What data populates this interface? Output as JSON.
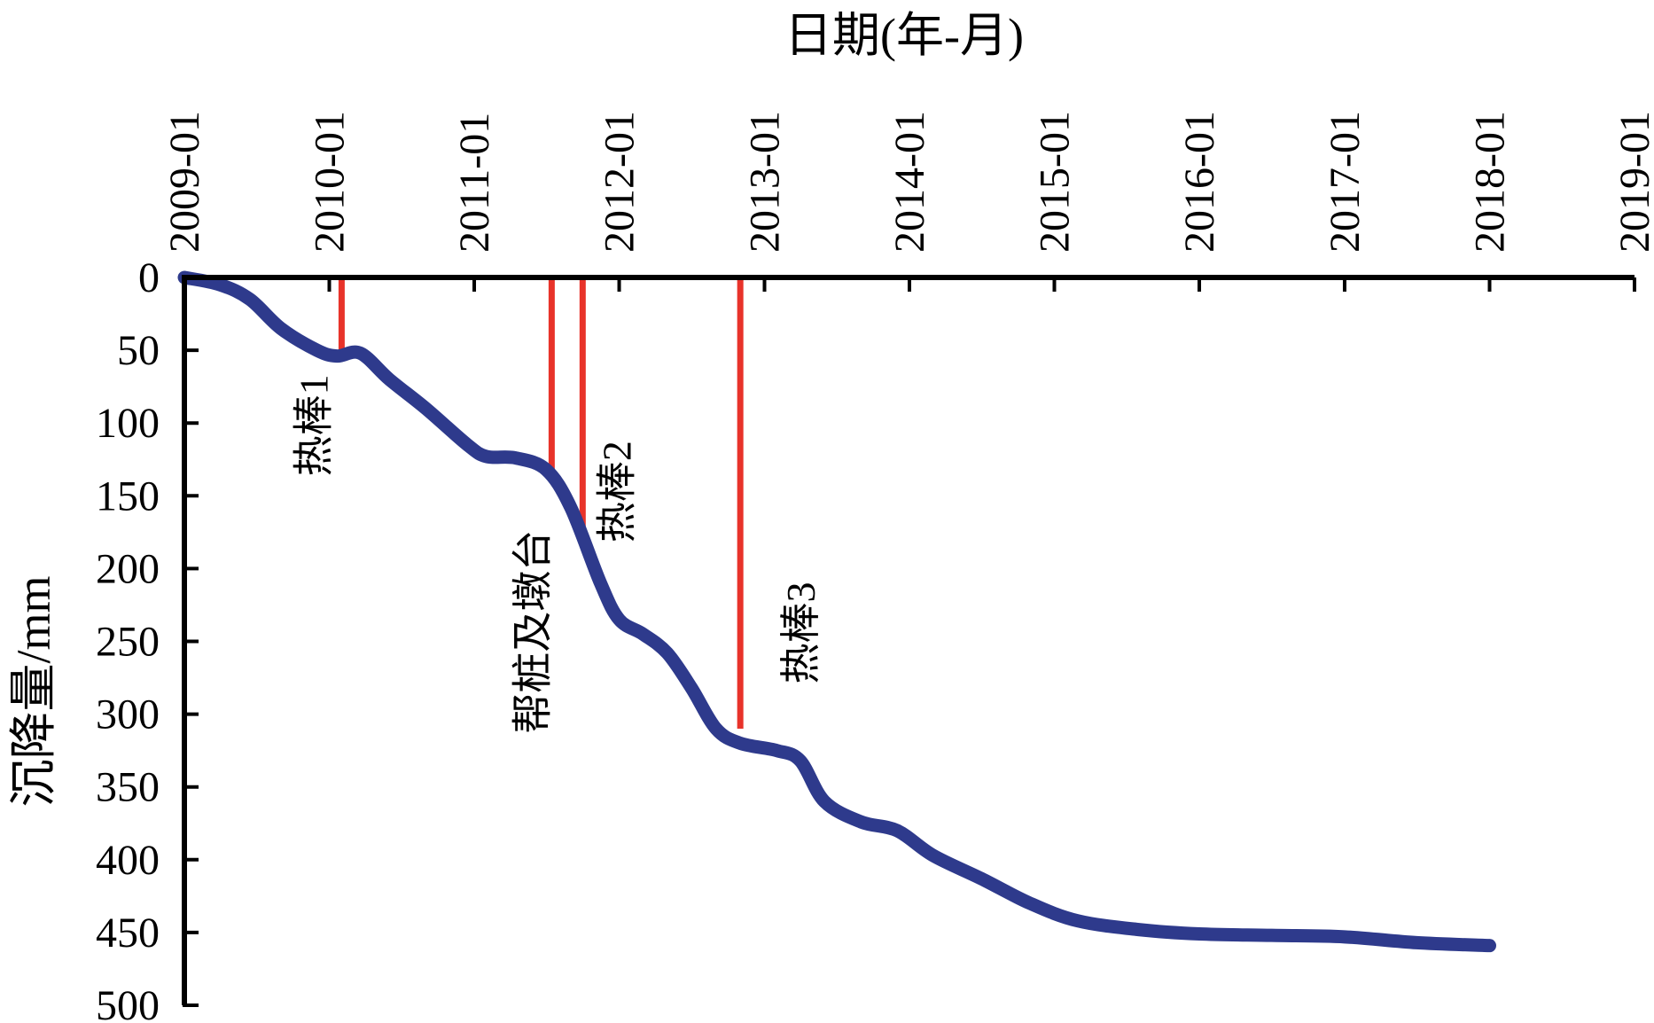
{
  "colors": {
    "series": "#2e3a8c",
    "marker": "#e8332a",
    "axis": "#000000",
    "background": "#ffffff"
  },
  "chart_data": {
    "type": "line",
    "title": "",
    "xlabel": "日期(年-月)",
    "ylabel": "沉降量/mm",
    "x_axis_position": "top",
    "y_axis_inverted": true,
    "grid": false,
    "legend": "none",
    "xlim": [
      "2009-01",
      "2019-01"
    ],
    "ylim": [
      0,
      500
    ],
    "x_ticks": [
      "2009-01",
      "2010-01",
      "2011-01",
      "2012-01",
      "2013-01",
      "2014-01",
      "2015-01",
      "2016-01",
      "2017-01",
      "2018-01",
      "2019-01"
    ],
    "y_ticks": [
      0,
      50,
      100,
      150,
      200,
      250,
      300,
      350,
      400,
      450,
      500
    ],
    "series": [
      {
        "points": [
          {
            "x": "2009-01-01",
            "y": 0
          },
          {
            "x": "2009-04-01",
            "y": 5
          },
          {
            "x": "2009-06-15",
            "y": 15
          },
          {
            "x": "2009-09-01",
            "y": 35
          },
          {
            "x": "2009-12-01",
            "y": 50
          },
          {
            "x": "2010-01-20",
            "y": 54
          },
          {
            "x": "2010-03-20",
            "y": 52
          },
          {
            "x": "2010-06-01",
            "y": 70
          },
          {
            "x": "2010-09-01",
            "y": 90
          },
          {
            "x": "2010-12-15",
            "y": 115
          },
          {
            "x": "2011-02-01",
            "y": 123
          },
          {
            "x": "2011-04-15",
            "y": 124
          },
          {
            "x": "2011-07-01",
            "y": 132
          },
          {
            "x": "2011-09-01",
            "y": 158
          },
          {
            "x": "2011-11-15",
            "y": 210
          },
          {
            "x": "2012-01-01",
            "y": 235
          },
          {
            "x": "2012-03-01",
            "y": 245
          },
          {
            "x": "2012-05-01",
            "y": 258
          },
          {
            "x": "2012-07-01",
            "y": 282
          },
          {
            "x": "2012-09-01",
            "y": 310
          },
          {
            "x": "2012-11-01",
            "y": 320
          },
          {
            "x": "2013-02-01",
            "y": 325
          },
          {
            "x": "2013-04-01",
            "y": 332
          },
          {
            "x": "2013-06-01",
            "y": 360
          },
          {
            "x": "2013-09-01",
            "y": 374
          },
          {
            "x": "2013-12-01",
            "y": 380
          },
          {
            "x": "2014-03-01",
            "y": 397
          },
          {
            "x": "2014-07-01",
            "y": 413
          },
          {
            "x": "2014-11-01",
            "y": 430
          },
          {
            "x": "2015-03-01",
            "y": 442
          },
          {
            "x": "2015-08-01",
            "y": 448
          },
          {
            "x": "2016-01-01",
            "y": 451
          },
          {
            "x": "2016-07-01",
            "y": 452
          },
          {
            "x": "2017-01-01",
            "y": 453
          },
          {
            "x": "2017-07-01",
            "y": 457
          },
          {
            "x": "2018-01-01",
            "y": 459
          }
        ]
      }
    ],
    "annotations": [
      {
        "label": "热棒1",
        "x": "2010-02-01",
        "y_from": 0,
        "y_to": 52
      },
      {
        "label": "帮桩及墩台",
        "x": "2011-07-15",
        "y_from": 0,
        "y_to": 138
      },
      {
        "label": "热棒2",
        "x": "2011-10-01",
        "y_from": 0,
        "y_to": 176
      },
      {
        "label": "热棒3",
        "x": "2012-11-01",
        "y_from": 0,
        "y_to": 310
      }
    ]
  }
}
